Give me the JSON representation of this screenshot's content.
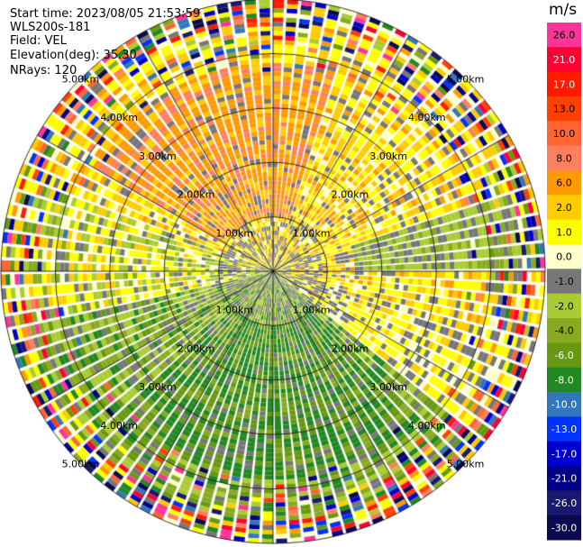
{
  "header": {
    "start_time": "Start time: 2023/08/05 21:53:59",
    "instrument": "WLS200s-181",
    "field": "Field: VEL",
    "elevation": "Elevation(deg): 35.30",
    "nrays": "NRays: 120"
  },
  "colorbar": {
    "unit": "m/s",
    "labels": [
      "26.0",
      "21.0",
      "17.0",
      "13.0",
      "10.0",
      "8.0",
      "6.0",
      "2.0",
      "1.0",
      "0.0",
      "-1.0",
      "-2.0",
      "-4.0",
      "-6.0",
      "-8.0",
      "-10.0",
      "-13.0",
      "-17.0",
      "-21.0",
      "-26.0",
      "-30.0"
    ],
    "colors": [
      "#ff3399",
      "#ff0033",
      "#ff1a00",
      "#ff4000",
      "#ff6633",
      "#ff8060",
      "#ff9900",
      "#ffcc00",
      "#ffff00",
      "#ffffcc",
      "#777777",
      "#aacc33",
      "#88aa22",
      "#669911",
      "#228822",
      "#3377bb",
      "#0033ff",
      "#0000cc",
      "#000088",
      "#191970",
      "#0a0a50"
    ]
  },
  "chart_data": {
    "type": "ppi",
    "field": "VEL",
    "rays": 120,
    "range_rings_km": [
      1.0,
      2.0,
      3.0,
      4.0,
      5.0
    ],
    "range_ring_labels": [
      "1.00km",
      "2.00km",
      "3.00km",
      "4.00km",
      "5.00km"
    ],
    "max_range_km": 5.0,
    "spoke_step_deg": 30,
    "dominant_pattern": {
      "north_sector": "warm (positive, 2 to 8 m/s)",
      "south_sector": "green (negative, -2 to -6 m/s)",
      "outer_ranges": "noisy, full colour range"
    }
  }
}
